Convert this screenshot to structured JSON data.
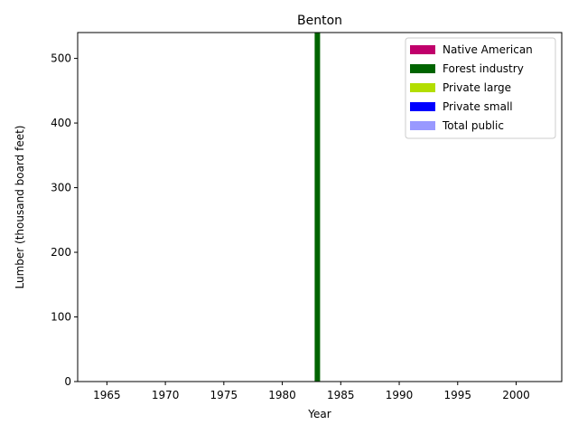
{
  "chart_data": {
    "type": "bar",
    "stacked": true,
    "title": "Benton",
    "xlabel": "Year",
    "ylabel": "Lumber (thousand board feet)",
    "xlim": [
      1962.5,
      2003.9
    ],
    "ylim": [
      0,
      540
    ],
    "xticks": [
      1965,
      1970,
      1975,
      1980,
      1985,
      1990,
      1995,
      2000
    ],
    "yticks": [
      0,
      100,
      200,
      300,
      400,
      500
    ],
    "grid": false,
    "legend_position": "top-right",
    "x": [
      1983
    ],
    "series": [
      {
        "name": "Native American",
        "color": "#c0006b",
        "values": [
          0
        ]
      },
      {
        "name": "Forest industry",
        "color": "#006400",
        "values": [
          540
        ]
      },
      {
        "name": "Private large",
        "color": "#b3de00",
        "values": [
          0
        ]
      },
      {
        "name": "Private small",
        "color": "#0000ff",
        "values": [
          0
        ]
      },
      {
        "name": "Total public",
        "color": "#9999ff",
        "values": [
          0
        ]
      }
    ]
  }
}
